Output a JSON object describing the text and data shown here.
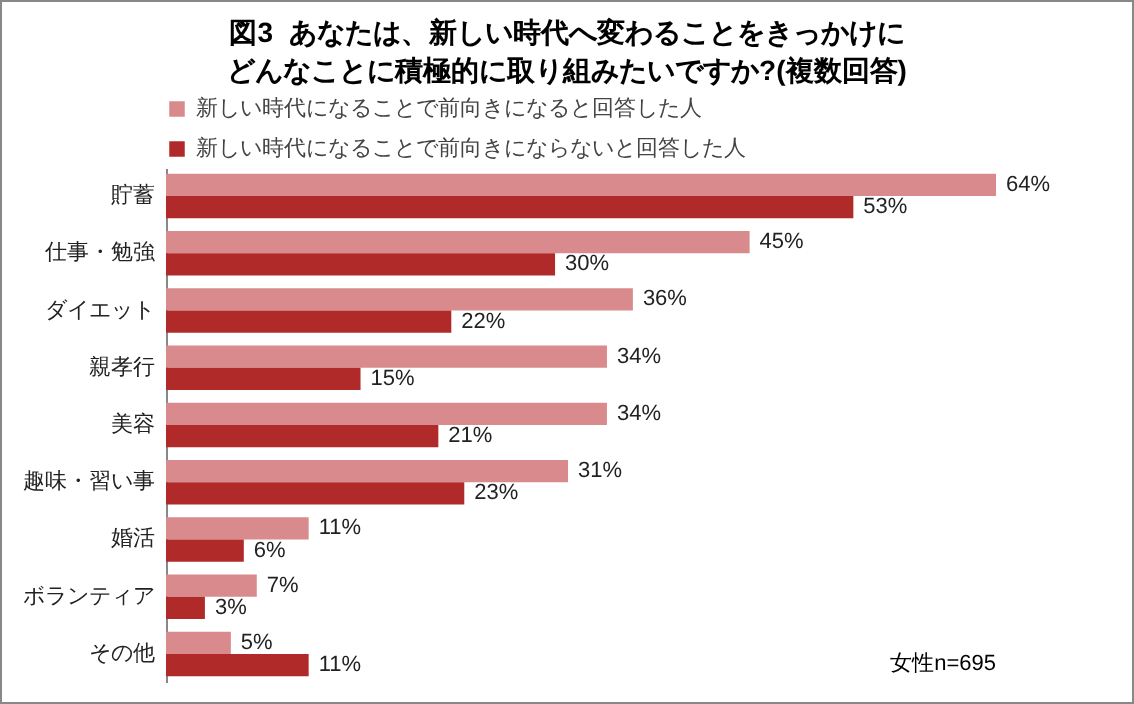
{
  "chart_data": {
    "type": "bar",
    "orientation": "horizontal",
    "title": "図3  あなたは、新しい時代へ変わることをきっかけにどんなことに積極的に取り組みたいですか?(複数回答)",
    "categories": [
      "貯蓄",
      "仕事・勉強",
      "ダイエット",
      "親孝行",
      "美容",
      "趣味・習い事",
      "婚活",
      "ボランティア",
      "その他"
    ],
    "series": [
      {
        "name": "新しい時代になることで前向きになると回答した人",
        "color": "#d98a8c",
        "values": [
          64,
          45,
          36,
          34,
          34,
          31,
          11,
          7,
          5
        ],
        "value_labels": [
          "64%",
          "45%",
          "36%",
          "34%",
          "34%",
          "31%",
          "11%",
          "7%",
          "5%"
        ]
      },
      {
        "name": "新しい時代になることで前向きにならないと回答した人",
        "color": "#b02a2a",
        "values": [
          53,
          30,
          22,
          15,
          21,
          23,
          6,
          3,
          11
        ],
        "value_labels": [
          "53%",
          "30%",
          "22%",
          "15%",
          "21%",
          "23%",
          "6%",
          "3%",
          "11%"
        ]
      }
    ],
    "annotations": [
      "女性n=695"
    ],
    "legend": "top",
    "grid": false,
    "tick_labels": "y"
  }
}
